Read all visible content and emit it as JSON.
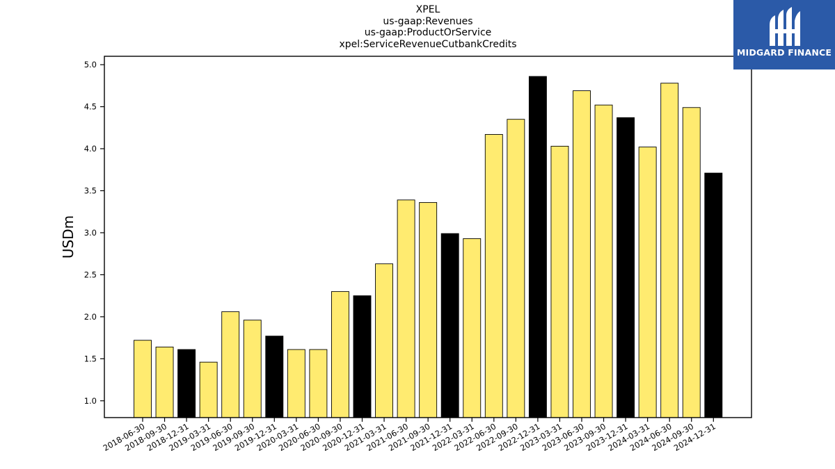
{
  "chart_data": {
    "type": "bar",
    "title_lines": [
      "XPEL",
      "us-gaap:Revenues",
      "us-gaap:ProductOrService",
      "xpel:ServiceRevenueCutbankCredits"
    ],
    "ylabel": "USDm",
    "xlabel": "",
    "ylim": [
      0.8,
      5.1
    ],
    "yticks": [
      "1.0",
      "1.5",
      "2.0",
      "2.5",
      "3.0",
      "3.5",
      "4.0",
      "4.5",
      "5.0"
    ],
    "categories": [
      "2018-06-30",
      "2018-09-30",
      "2018-12-31",
      "2019-03-31",
      "2019-06-30",
      "2019-09-30",
      "2019-12-31",
      "2020-03-31",
      "2020-06-30",
      "2020-09-30",
      "2020-12-31",
      "2021-03-31",
      "2021-06-30",
      "2021-09-30",
      "2021-12-31",
      "2022-03-31",
      "2022-06-30",
      "2022-09-30",
      "2022-12-31",
      "2023-03-31",
      "2023-06-30",
      "2023-09-30",
      "2023-12-31",
      "2024-03-31",
      "2024-06-30",
      "2024-09-30",
      "2024-12-31"
    ],
    "values": [
      1.72,
      1.64,
      1.61,
      1.46,
      2.06,
      1.96,
      1.77,
      1.61,
      1.61,
      2.3,
      2.25,
      2.63,
      3.39,
      3.36,
      2.99,
      2.93,
      4.17,
      4.35,
      4.86,
      4.03,
      4.69,
      4.52,
      4.37,
      4.02,
      4.78,
      4.49,
      3.71
    ],
    "colors": {
      "quarter": "#ffeb70",
      "year_end": "#000000",
      "edge": "#000000"
    },
    "grid": false
  },
  "logo": {
    "text": "MIDGARD FINANCE",
    "icon": "midgard-logo-icon"
  }
}
